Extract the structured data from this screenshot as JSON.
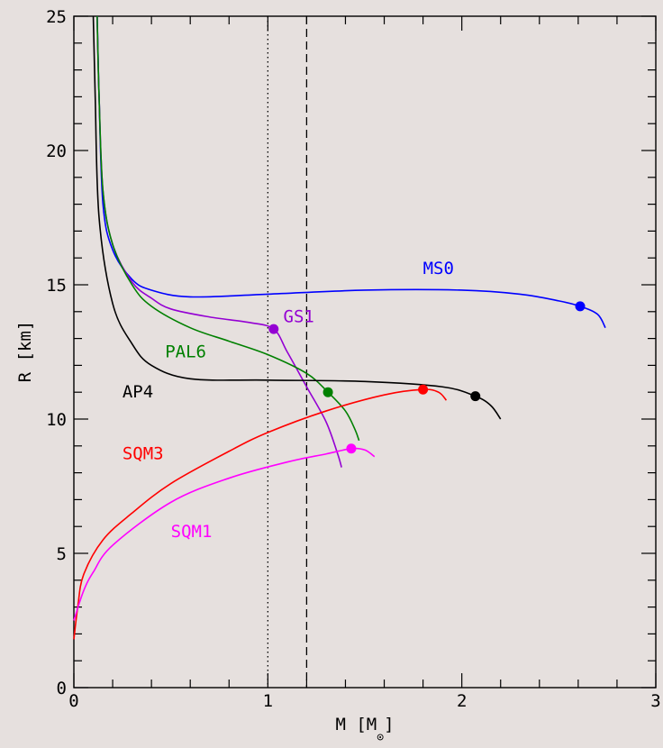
{
  "chart_data": {
    "type": "line",
    "xlabel_main": "M [M",
    "xlabel_sub": "⊙",
    "xlabel_close": "]",
    "ylabel": "R [km]",
    "xlim": [
      0,
      3
    ],
    "ylim": [
      0,
      25
    ],
    "xticks": [
      "0",
      "1",
      "2",
      "3"
    ],
    "yticks": [
      "0",
      "5",
      "10",
      "15",
      "20",
      "25"
    ],
    "grid": false,
    "legend": "none",
    "vlines": [
      {
        "x": 1.0,
        "style": "dotted"
      },
      {
        "x": 1.2,
        "style": "dashed"
      }
    ],
    "series": [
      {
        "name": "MS0",
        "color": "#0000ff",
        "label_pos": [
          1.8,
          15.4
        ],
        "points": [
          [
            0.12,
            25
          ],
          [
            0.13,
            22
          ],
          [
            0.15,
            18
          ],
          [
            0.2,
            16.3
          ],
          [
            0.3,
            15.2
          ],
          [
            0.4,
            14.8
          ],
          [
            0.6,
            14.55
          ],
          [
            1.0,
            14.65
          ],
          [
            1.5,
            14.8
          ],
          [
            2.0,
            14.8
          ],
          [
            2.3,
            14.65
          ],
          [
            2.5,
            14.4
          ],
          [
            2.61,
            14.2
          ],
          [
            2.7,
            13.9
          ],
          [
            2.74,
            13.4
          ]
        ],
        "max": [
          2.61,
          14.2
        ]
      },
      {
        "name": "GS1",
        "color": "#9400d3",
        "label_pos": [
          1.08,
          13.6
        ],
        "points": [
          [
            0.12,
            25
          ],
          [
            0.13,
            22
          ],
          [
            0.15,
            18.5
          ],
          [
            0.2,
            16.5
          ],
          [
            0.3,
            15.1
          ],
          [
            0.4,
            14.5
          ],
          [
            0.5,
            14.1
          ],
          [
            0.7,
            13.8
          ],
          [
            0.9,
            13.6
          ],
          [
            1.03,
            13.35
          ],
          [
            1.1,
            12.5
          ],
          [
            1.2,
            11.2
          ],
          [
            1.3,
            9.9
          ],
          [
            1.36,
            8.7
          ],
          [
            1.38,
            8.2
          ]
        ],
        "max": [
          1.03,
          13.35
        ]
      },
      {
        "name": "PAL6",
        "color": "#008000",
        "label_pos": [
          0.47,
          12.3
        ],
        "points": [
          [
            0.12,
            25
          ],
          [
            0.13,
            22
          ],
          [
            0.15,
            18.5
          ],
          [
            0.2,
            16.5
          ],
          [
            0.3,
            15.0
          ],
          [
            0.4,
            14.2
          ],
          [
            0.6,
            13.4
          ],
          [
            0.8,
            12.9
          ],
          [
            1.0,
            12.4
          ],
          [
            1.2,
            11.7
          ],
          [
            1.31,
            11.0
          ],
          [
            1.4,
            10.3
          ],
          [
            1.45,
            9.6
          ],
          [
            1.47,
            9.2
          ]
        ],
        "max": [
          1.31,
          11.0
        ]
      },
      {
        "name": "AP4",
        "color": "#000000",
        "label_pos": [
          0.25,
          10.8
        ],
        "points": [
          [
            0.1,
            25
          ],
          [
            0.11,
            22
          ],
          [
            0.13,
            17.5
          ],
          [
            0.2,
            14.3
          ],
          [
            0.3,
            12.8
          ],
          [
            0.4,
            12.0
          ],
          [
            0.6,
            11.5
          ],
          [
            1.0,
            11.45
          ],
          [
            1.5,
            11.4
          ],
          [
            1.9,
            11.2
          ],
          [
            2.07,
            10.85
          ],
          [
            2.15,
            10.5
          ],
          [
            2.2,
            10.0
          ]
        ],
        "max": [
          2.07,
          10.85
        ]
      },
      {
        "name": "SQM3",
        "color": "#ff0000",
        "label_pos": [
          0.25,
          8.5
        ],
        "points": [
          [
            0.0,
            1.8
          ],
          [
            0.02,
            3.0
          ],
          [
            0.05,
            4.2
          ],
          [
            0.15,
            5.5
          ],
          [
            0.3,
            6.5
          ],
          [
            0.5,
            7.6
          ],
          [
            0.8,
            8.8
          ],
          [
            1.0,
            9.5
          ],
          [
            1.3,
            10.3
          ],
          [
            1.6,
            10.9
          ],
          [
            1.8,
            11.1
          ],
          [
            1.88,
            11.0
          ],
          [
            1.92,
            10.7
          ]
        ],
        "max": [
          1.8,
          11.1
        ]
      },
      {
        "name": "SQM1",
        "color": "#ff00ff",
        "label_pos": [
          0.5,
          5.6
        ],
        "points": [
          [
            0.0,
            2.5
          ],
          [
            0.05,
            3.6
          ],
          [
            0.1,
            4.3
          ],
          [
            0.2,
            5.3
          ],
          [
            0.5,
            6.9
          ],
          [
            0.8,
            7.8
          ],
          [
            1.1,
            8.4
          ],
          [
            1.3,
            8.7
          ],
          [
            1.43,
            8.9
          ],
          [
            1.5,
            8.85
          ],
          [
            1.55,
            8.6
          ]
        ],
        "max": [
          1.43,
          8.9
        ]
      }
    ]
  }
}
